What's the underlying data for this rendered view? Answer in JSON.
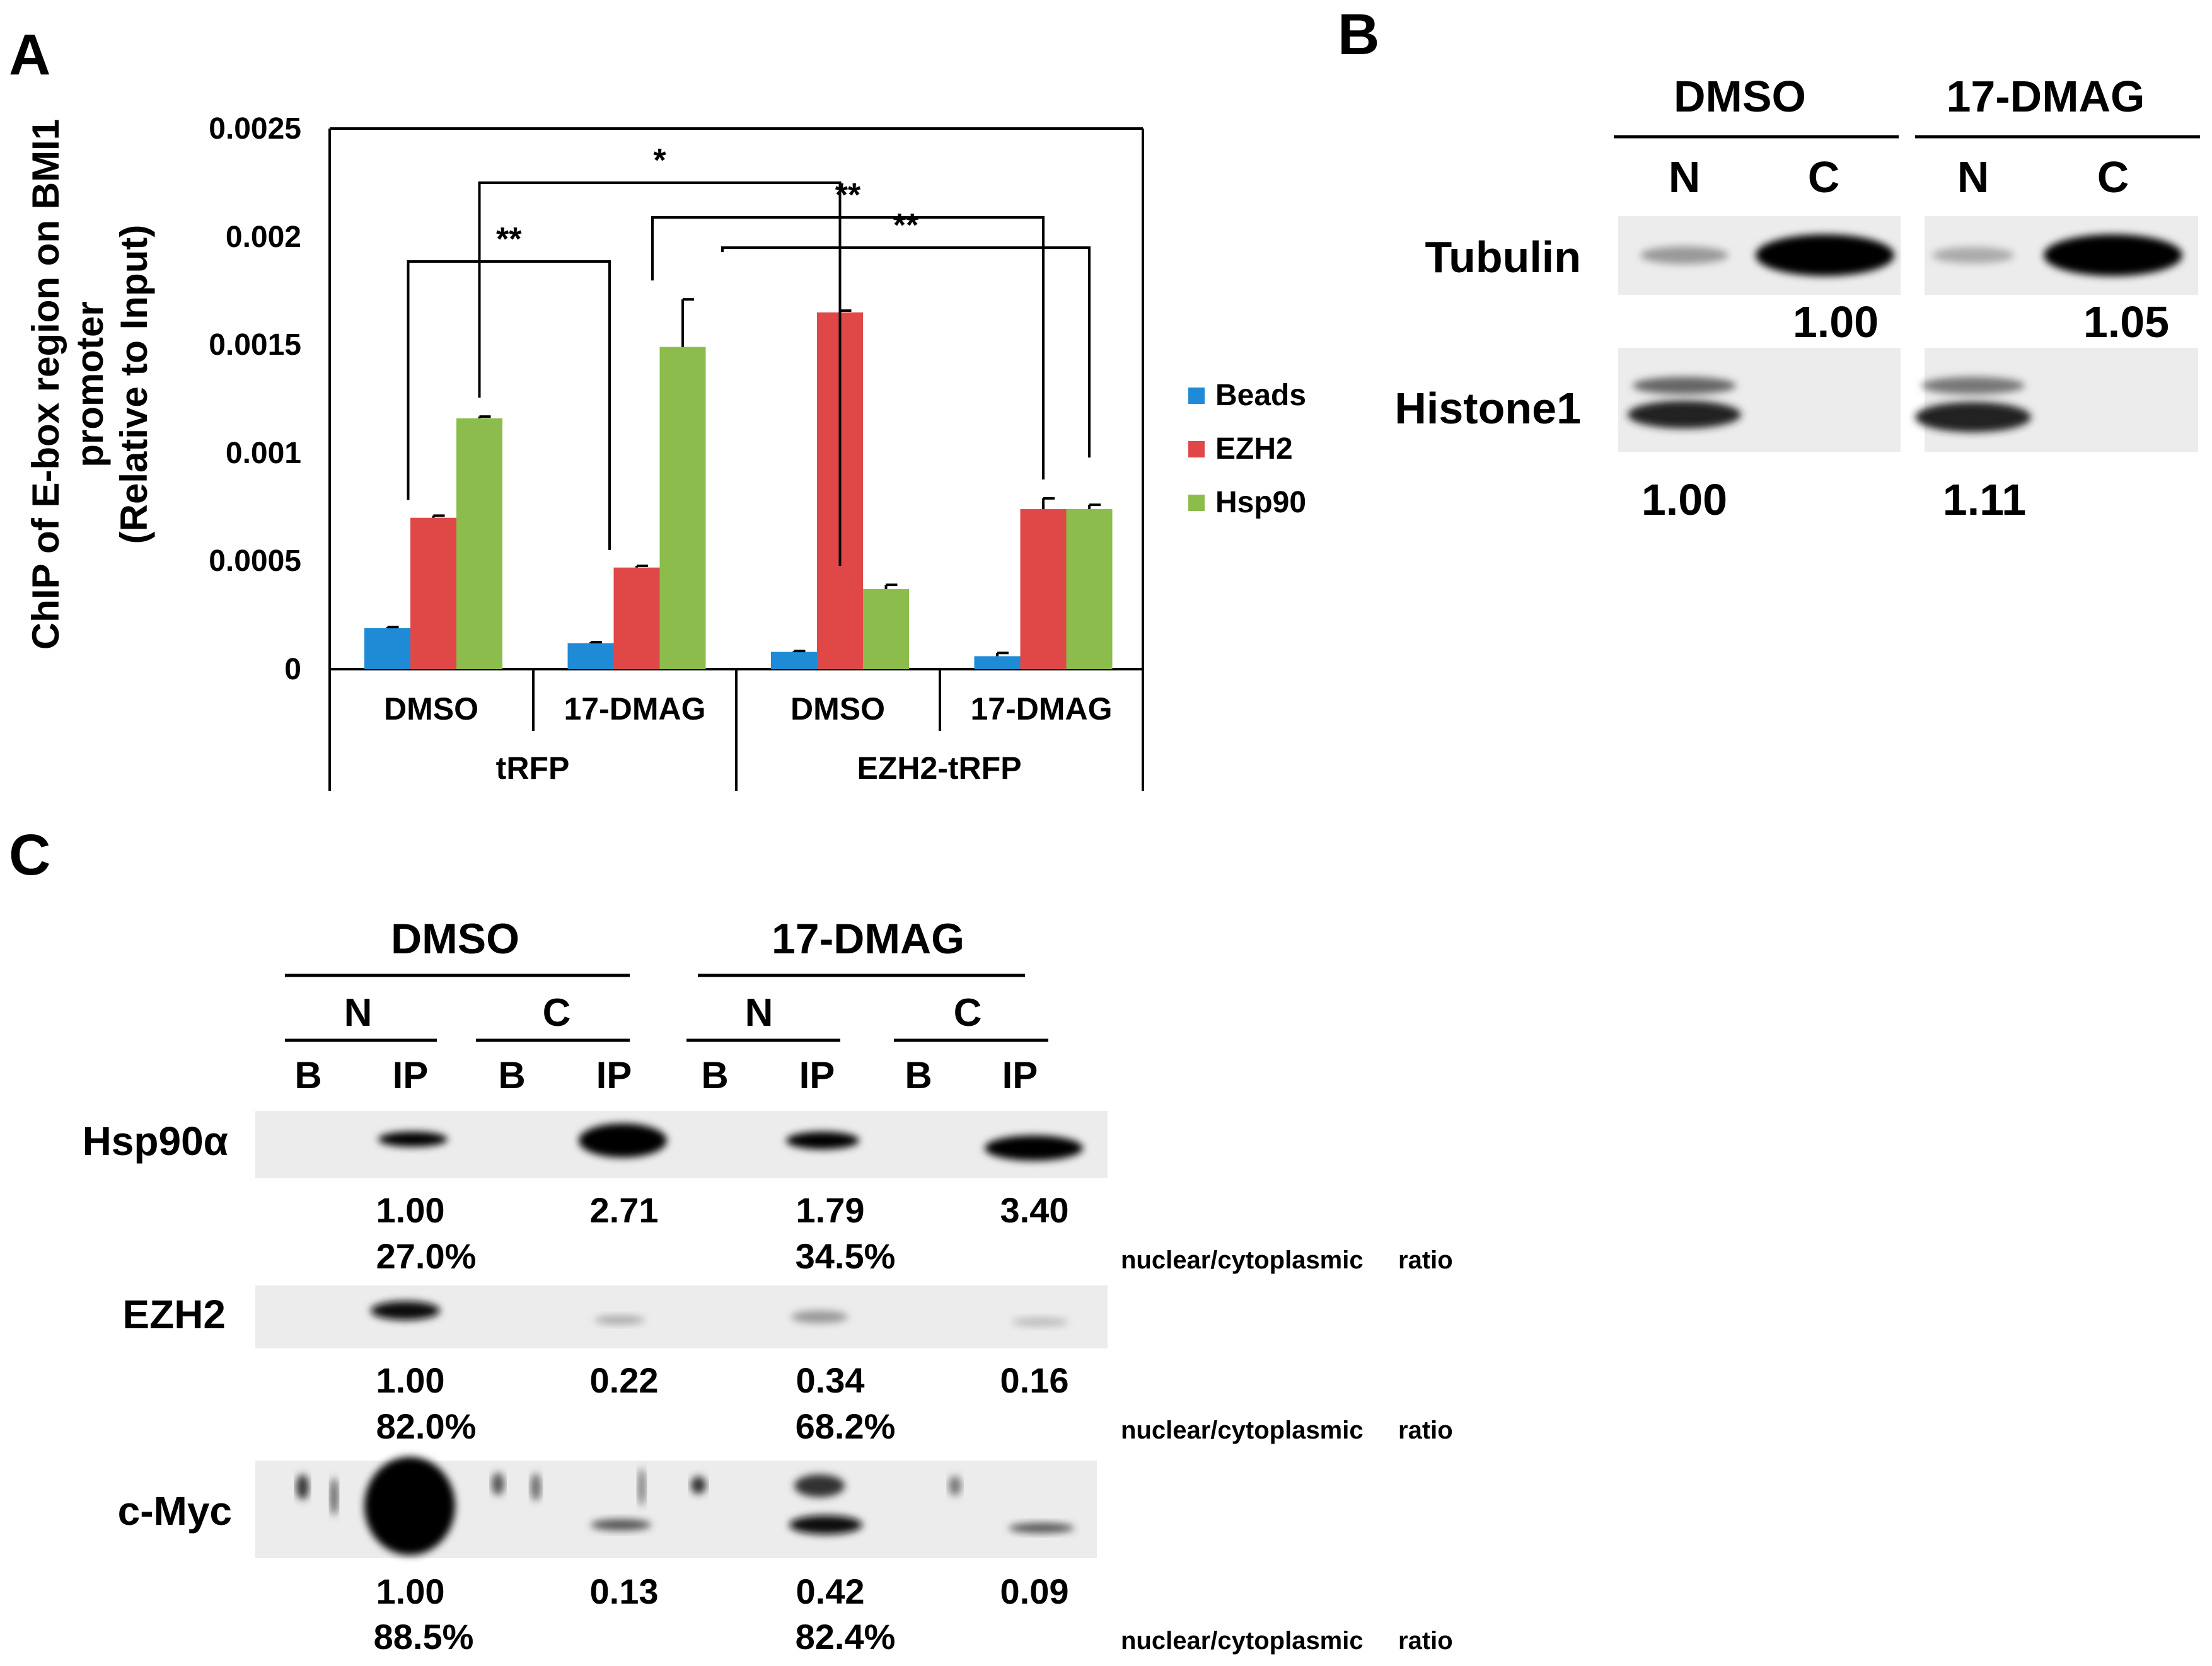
{
  "colors": {
    "beads": "#1F8BD6",
    "ezh2": "#E04848",
    "hsp90": "#8CBD4C",
    "axis": "#000000",
    "blot_bg": "#e9e9e9",
    "band": "#111111"
  },
  "panel_a": {
    "label": "A",
    "chart_data": {
      "type": "bar",
      "ylabel_lines": [
        "ChIP of E-box region on BMI1",
        "promoter",
        "(Relative to Input)"
      ],
      "ylim": [
        0,
        0.0025
      ],
      "yticks": [
        "0",
        "0.0005",
        "0.001",
        "0.0015",
        "0.002",
        "0.0025"
      ],
      "categories": [
        "DMSO",
        "17-DMAG",
        "DMSO",
        "17-DMAG"
      ],
      "groups": [
        "tRFP",
        "EZH2-tRFP"
      ],
      "series": [
        {
          "name": "Beads",
          "values": [
            0.00019,
            0.00012,
            8e-05,
            6e-05
          ],
          "errors": [
            5e-06,
            5e-06,
            4e-06,
            1.5e-05
          ]
        },
        {
          "name": "EZH2",
          "values": [
            0.0007,
            0.00047,
            0.00165,
            0.00074
          ],
          "errors": [
            1e-05,
            8e-06,
            8e-06,
            5e-05
          ]
        },
        {
          "name": "Hsp90",
          "values": [
            0.00116,
            0.00149,
            0.00037,
            0.00074
          ],
          "errors": [
            8e-06,
            0.00022,
            2e-05,
            2e-05
          ]
        }
      ],
      "significance": [
        "**",
        "*",
        "**",
        "**"
      ]
    }
  },
  "panel_b": {
    "label": "B",
    "treatments": [
      "DMSO",
      "17-DMAG"
    ],
    "fractions": [
      "N",
      "C",
      "N",
      "C"
    ],
    "rows": [
      {
        "name": "Tubulin",
        "values": [
          "1.00",
          "1.05"
        ]
      },
      {
        "name": "Histone1",
        "values": [
          "1.00",
          "1.11"
        ]
      }
    ]
  },
  "panel_c": {
    "label": "C",
    "treatments": [
      "DMSO",
      "17-DMAG"
    ],
    "fractions": [
      "N",
      "C",
      "N",
      "C"
    ],
    "lanes": [
      "B",
      "IP",
      "B",
      "IP",
      "B",
      "IP",
      "B",
      "IP"
    ],
    "ratio_label": "nuclear/cytoplasmic",
    "ratio_word": "ratio",
    "rows": [
      {
        "name": "Hsp90α",
        "values": [
          "1.00",
          "2.71",
          "1.79",
          "3.40"
        ],
        "percents": [
          "27.0%",
          "34.5%"
        ]
      },
      {
        "name": "EZH2",
        "values": [
          "1.00",
          "0.22",
          "0.34",
          "0.16"
        ],
        "percents": [
          "82.0%",
          "68.2%"
        ]
      },
      {
        "name": "c-Myc",
        "values": [
          "1.00",
          "0.13",
          "0.42",
          "0.09"
        ],
        "percents": [
          "88.5%",
          "82.4%"
        ]
      }
    ]
  }
}
